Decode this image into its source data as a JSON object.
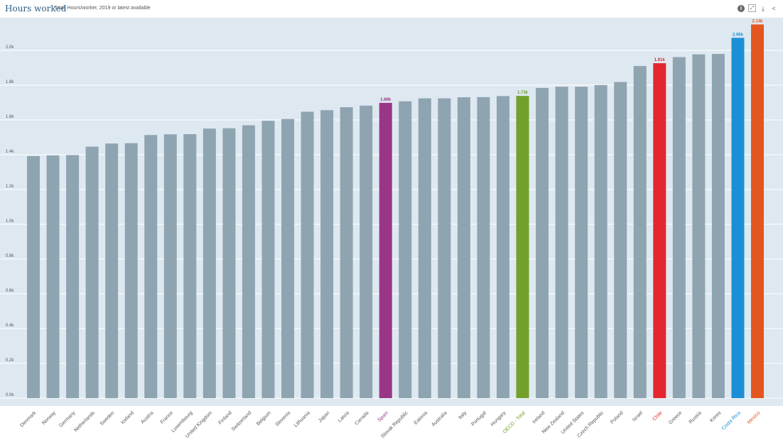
{
  "header": {
    "title": "Hours worked",
    "subtitle": "Total, Hours/worker, 2019 or latest available",
    "icons": [
      "info-icon",
      "fullscreen-icon",
      "download-icon",
      "share-icon"
    ]
  },
  "colors": {
    "default": "#8fa4b1",
    "Spain": "#9b3587",
    "OECD - Total": "#72a02a",
    "Chile": "#e3262f",
    "Costa Rica": "#1b8fd6",
    "Mexico": "#e4561f",
    "plot_bg": "#dde8f0"
  },
  "chart_data": {
    "type": "bar",
    "title": "Hours worked",
    "subtitle": "Total, Hours/worker, 2019 or latest available",
    "xlabel": "",
    "ylabel": "",
    "ylim": [
      0,
      2200
    ],
    "yticks": [
      0,
      200,
      400,
      600,
      800,
      1000,
      1200,
      1400,
      1600,
      1800,
      2000
    ],
    "ytick_labels": [
      "0.0k",
      "0.2k",
      "0.4k",
      "0.6k",
      "0.8k",
      "1.0k",
      "1.2k",
      "1.4k",
      "1.6k",
      "1.8k",
      "2.0k"
    ],
    "grid": true,
    "categories": [
      "Denmark",
      "Norway",
      "Germany",
      "Netherlands",
      "Sweden",
      "Iceland",
      "Austria",
      "France",
      "Luxembourg",
      "United Kingdom",
      "Finland",
      "Switzerland",
      "Belgium",
      "Slovenia",
      "Lithuania",
      "Japan",
      "Latvia",
      "Canada",
      "Spain",
      "Slovak Republic",
      "Estonia",
      "Australia",
      "Italy",
      "Portugal",
      "Hungary",
      "OECD - Total",
      "Ireland",
      "New Zealand",
      "United States",
      "Czech Republic",
      "Poland",
      "Israel",
      "Chile",
      "Greece",
      "Russia",
      "Korea",
      "Costa Rica",
      "Mexico"
    ],
    "values": [
      1380,
      1384,
      1386,
      1434,
      1452,
      1454,
      1501,
      1505,
      1506,
      1538,
      1540,
      1557,
      1583,
      1593,
      1635,
      1644,
      1661,
      1670,
      1686,
      1695,
      1712,
      1712,
      1718,
      1719,
      1725,
      1726,
      1772,
      1779,
      1779,
      1788,
      1806,
      1898,
      1914,
      1949,
      1965,
      1967,
      2060,
      2137
    ],
    "data_labels": {
      "Spain": "1.69k",
      "OECD - Total": "1.73k",
      "Chile": "1.91k",
      "Costa Rica": "2.06k",
      "Mexico": "2.14k"
    }
  }
}
